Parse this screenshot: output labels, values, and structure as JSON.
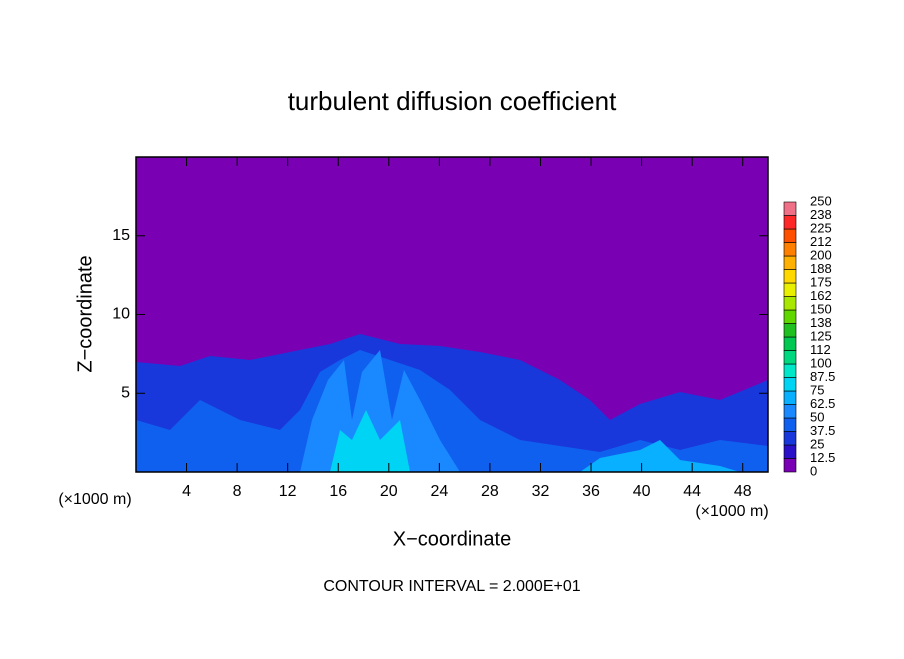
{
  "chart_data": {
    "type": "contour",
    "title": "turbulent diffusion coefficient",
    "xlabel": "X−coordinate",
    "ylabel": "Z−coordinate",
    "x_unit": "(×1000 m)",
    "footnote": "CONTOUR INTERVAL = 2.000E+01",
    "xlim": [
      0,
      50
    ],
    "ylim": [
      0,
      20
    ],
    "xticks": [
      4,
      8,
      12,
      16,
      20,
      24,
      28,
      32,
      36,
      40,
      44,
      48
    ],
    "yticks": [
      5,
      10,
      15
    ],
    "colorbar": {
      "levels": [
        0,
        12.5,
        25,
        37.5,
        50,
        62.5,
        75,
        87.5,
        100,
        {
          "value": 112.5,
          "label": "112"
        },
        125,
        {
          "value": 137.5,
          "label": "138"
        },
        150,
        {
          "value": 162.5,
          "label": "162"
        },
        175,
        {
          "value": 187.5,
          "label": "188"
        },
        200,
        {
          "value": 212.5,
          "label": "212"
        },
        225,
        {
          "value": 237.5,
          "label": "238"
        },
        250
      ],
      "colors": [
        "#7a00b4",
        "#2a10c8",
        "#1838dc",
        "#1060f0",
        "#1a88ff",
        "#08b0ff",
        "#00d4f4",
        "#00e8c8",
        "#00d880",
        "#00c850",
        "#20c020",
        "#60d800",
        "#a8e800",
        "#e8f000",
        "#ffd800",
        "#ffb000",
        "#ff8000",
        "#ff5000",
        "#ff2828",
        "#f07088"
      ]
    }
  }
}
